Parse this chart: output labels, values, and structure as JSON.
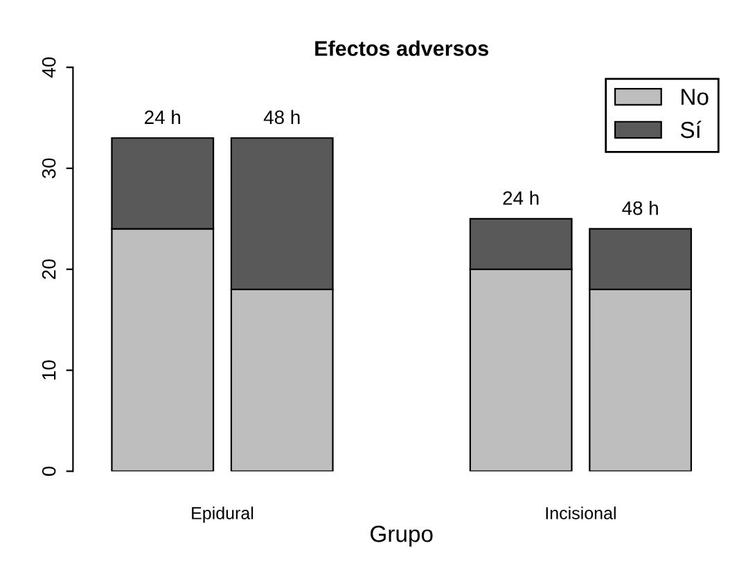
{
  "chart_data": {
    "type": "bar",
    "title": "Efectos adversos",
    "xlabel": "Grupo",
    "stacked": true,
    "categories": [
      "24 h",
      "48 h",
      null,
      "24 h",
      "48 h"
    ],
    "series": [
      {
        "name": "No",
        "color": "#bebebe",
        "values": [
          24,
          18,
          null,
          20,
          18
        ]
      },
      {
        "name": "Sí",
        "color": "#595959",
        "values": [
          9,
          15,
          null,
          5,
          6
        ]
      }
    ],
    "ylim": [
      0,
      40
    ],
    "yticks": [
      0,
      10,
      20,
      30,
      40
    ],
    "grid": false,
    "legend": "top right",
    "annotations": [
      "Epidural",
      "Incisional"
    ]
  }
}
